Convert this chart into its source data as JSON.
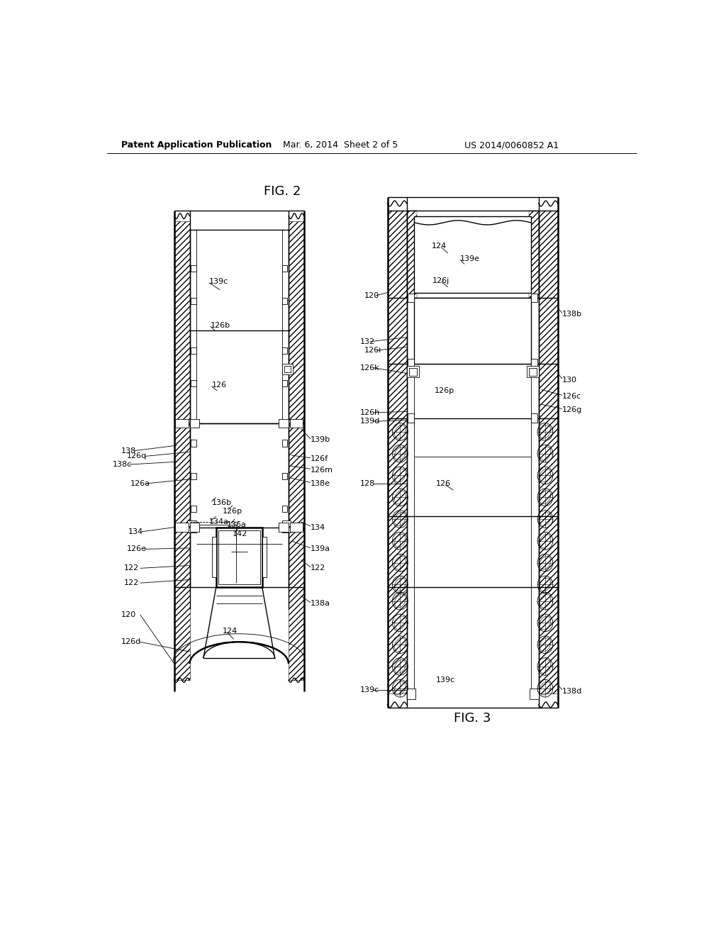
{
  "title_left": "Patent Application Publication",
  "title_mid": "Mar. 6, 2014  Sheet 2 of 5",
  "title_right": "US 2014/0060852 A1",
  "fig2_label": "FIG. 2",
  "fig3_label": "FIG. 3",
  "bg_color": "#ffffff"
}
